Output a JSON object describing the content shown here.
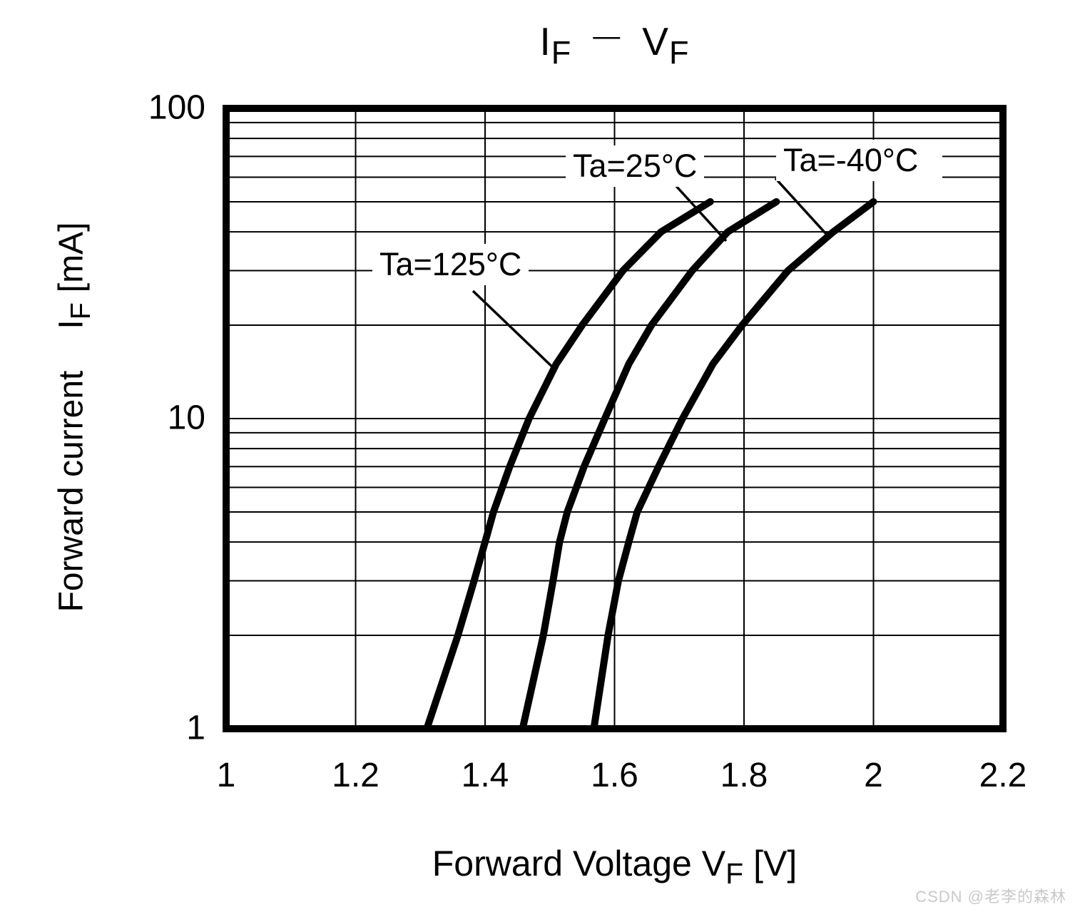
{
  "page": {
    "watermark": "CSDN @老李的森林"
  },
  "chart_data": {
    "type": "line",
    "title": "IF — VF",
    "title_parts": {
      "i": "I",
      "i_sub": "F",
      "dash": "—",
      "v": "V",
      "v_sub": "F"
    },
    "xlabel": "Forward Voltage VF [V]",
    "xlabel_parts": {
      "text": "Forward Voltage",
      "sym": "V",
      "sym_sub": "F",
      "unit": "[V]"
    },
    "ylabel": "Forward current IF [mA]",
    "ylabel_parts": {
      "text": "Forward current",
      "sym": "I",
      "sym_sub": "F",
      "unit": "[mA]"
    },
    "xscale": "linear",
    "yscale": "log",
    "xlim": [
      1,
      2.2
    ],
    "ylim": [
      1,
      100
    ],
    "grid": true,
    "x_tick_values": [
      1,
      1.2,
      1.4,
      1.6,
      1.8,
      2,
      2.2
    ],
    "x_tick_labels": [
      "1",
      "1.2",
      "1.4",
      "1.6",
      "1.8",
      "2",
      "2.2"
    ],
    "y_tick_values": [
      100,
      10,
      1
    ],
    "y_tick_labels": [
      "100",
      "10",
      "1"
    ],
    "x_gridlines": [
      1.2,
      1.4,
      1.6,
      1.8,
      2.0
    ],
    "y_gridlines": [
      2,
      3,
      4,
      5,
      6,
      7,
      8,
      9,
      10,
      20,
      30,
      40,
      50,
      60,
      70,
      80,
      90
    ],
    "legend_position": "inline-labels-with-leader-lines",
    "line_color": "#000000",
    "series": [
      {
        "name": "Ta=125°C",
        "x": [
          1.31,
          1.358,
          1.383,
          1.4,
          1.413,
          1.438,
          1.468,
          1.51,
          1.55,
          1.613,
          1.672,
          1.748
        ],
        "y": [
          1,
          2,
          3,
          4,
          5,
          7,
          10,
          15,
          20,
          30,
          40,
          50
        ]
      },
      {
        "name": "Ta=25°C",
        "x": [
          1.458,
          1.49,
          1.505,
          1.515,
          1.527,
          1.553,
          1.585,
          1.622,
          1.657,
          1.72,
          1.775,
          1.85
        ],
        "y": [
          1,
          2,
          3,
          4,
          5,
          7,
          10,
          15,
          20,
          30,
          40,
          50
        ]
      },
      {
        "name": "Ta=-40°C",
        "x": [
          1.568,
          1.59,
          1.606,
          1.622,
          1.635,
          1.668,
          1.705,
          1.752,
          1.797,
          1.868,
          1.938,
          2.0
        ],
        "y": [
          1,
          2,
          3,
          4,
          5,
          7,
          10,
          15,
          20,
          30,
          40,
          50
        ]
      }
    ]
  }
}
